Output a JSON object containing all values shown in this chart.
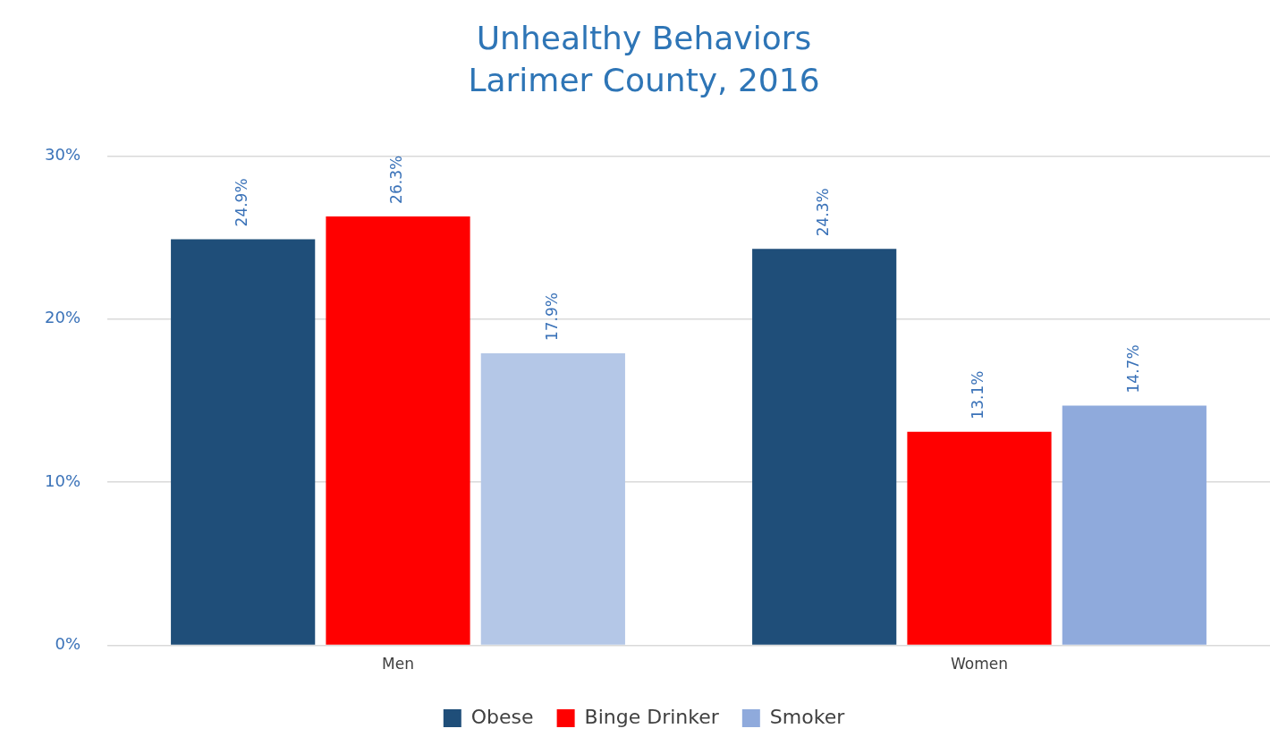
{
  "chart_data": {
    "type": "bar",
    "title": "Unhealthy Behaviors",
    "subtitle": "Larimer County, 2016",
    "categories": [
      "Men",
      "Women"
    ],
    "series": [
      {
        "name": "Obese",
        "color": "#1f4e79",
        "values": [
          24.9,
          24.3
        ],
        "value_labels": [
          "24.9%",
          "24.3%"
        ]
      },
      {
        "name": "Binge Drinker",
        "color": "#ff0000",
        "values": [
          26.3,
          13.1
        ],
        "value_labels": [
          "26.3%",
          "13.1%"
        ]
      },
      {
        "name": "Smoker",
        "color": "#8faadc",
        "colors": [
          "#b4c7e7",
          "#8faadc"
        ],
        "values": [
          17.9,
          14.7
        ],
        "value_labels": [
          "17.9%",
          "14.7%"
        ]
      }
    ],
    "ylim": [
      0,
      30
    ],
    "yticks": [
      {
        "value": 0,
        "label": "0%"
      },
      {
        "value": 10,
        "label": "10%"
      },
      {
        "value": 20,
        "label": "20%"
      },
      {
        "value": 30,
        "label": "30%"
      }
    ],
    "grid": "y",
    "legend": "bottom"
  }
}
